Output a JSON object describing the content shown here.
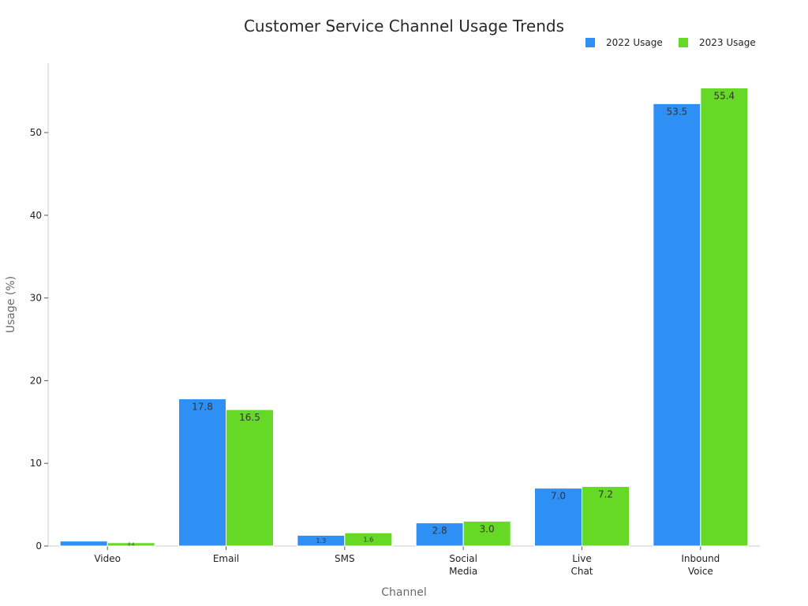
{
  "chart_data": {
    "type": "bar",
    "title": "Customer Service Channel Usage Trends",
    "xlabel": "Channel",
    "ylabel": "Usage (%)",
    "categories": [
      [
        "Video"
      ],
      [
        "Email"
      ],
      [
        "SMS"
      ],
      [
        "Social",
        "Media"
      ],
      [
        "Live",
        "Chat"
      ],
      [
        "Inbound",
        "Voice"
      ]
    ],
    "series": [
      {
        "name": "2022 Usage",
        "color": "#2e90f5",
        "values": [
          0.6,
          17.8,
          1.3,
          2.8,
          7.0,
          53.5
        ],
        "labels": [
          "",
          "17.8",
          "1.3",
          "2.8",
          "7.0",
          "53.5"
        ]
      },
      {
        "name": "2023 Usage",
        "color": "#66d926",
        "values": [
          0.4,
          16.5,
          1.6,
          3.0,
          7.2,
          55.4
        ],
        "labels": [
          "0.4",
          "16.5",
          "1.6",
          "3.0",
          "7.2",
          "55.4"
        ]
      }
    ],
    "ylim": [
      0,
      58.4
    ],
    "yticks": [
      0,
      10,
      20,
      30,
      40,
      50
    ],
    "legend": "top-right",
    "grid": false
  }
}
